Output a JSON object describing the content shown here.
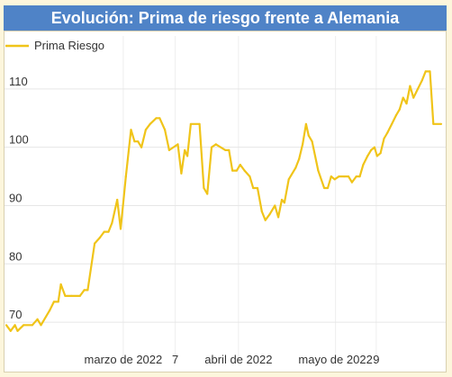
{
  "title": "Evolución: Prima de riesgo frente a Alemania",
  "chart_data": {
    "type": "line",
    "title": "Evolución: Prima de riesgo frente a Alemania",
    "xlabel": "",
    "ylabel": "",
    "ylim": [
      66,
      116
    ],
    "grid": true,
    "legend_position": "top-left",
    "x_ticks": [
      {
        "label": "marzo de 2022",
        "x": 13.5
      },
      {
        "label": "7",
        "x": 19.5
      },
      {
        "label": "abril de 2022",
        "x": 26.8
      },
      {
        "label": "mayo de 2022",
        "x": 38
      },
      {
        "label": "9",
        "x": 42.7
      }
    ],
    "y_ticks": [
      70,
      80,
      90,
      100,
      110
    ],
    "series": [
      {
        "name": "Prima Riesgo",
        "color": "#f0c419",
        "points": [
          [
            0,
            69.5
          ],
          [
            0.5,
            68.5
          ],
          [
            1,
            69.5
          ],
          [
            1.3,
            68.5
          ],
          [
            2,
            69.5
          ],
          [
            3,
            69.5
          ],
          [
            3.6,
            70.5
          ],
          [
            4,
            69.5
          ],
          [
            5,
            72
          ],
          [
            5.5,
            73.5
          ],
          [
            6,
            73.5
          ],
          [
            6.3,
            76.5
          ],
          [
            6.8,
            74.5
          ],
          [
            7.5,
            74.5
          ],
          [
            8.5,
            74.5
          ],
          [
            9,
            75.5
          ],
          [
            9.4,
            75.5
          ],
          [
            10.2,
            83.5
          ],
          [
            10.8,
            84.5
          ],
          [
            11.3,
            85.5
          ],
          [
            11.8,
            85.5
          ],
          [
            12.2,
            87
          ],
          [
            12.8,
            91
          ],
          [
            13.2,
            86
          ],
          [
            13.8,
            95
          ],
          [
            14.4,
            103
          ],
          [
            14.8,
            101
          ],
          [
            15.2,
            101
          ],
          [
            15.6,
            100
          ],
          [
            16.1,
            103
          ],
          [
            16.6,
            104
          ],
          [
            17.3,
            105
          ],
          [
            17.7,
            105
          ],
          [
            18.3,
            103
          ],
          [
            18.8,
            99.5
          ],
          [
            19.8,
            100.5
          ],
          [
            20.2,
            95.5
          ],
          [
            20.6,
            99.5
          ],
          [
            20.9,
            98.5
          ],
          [
            21.3,
            104
          ],
          [
            22.3,
            104
          ],
          [
            22.8,
            93
          ],
          [
            23.2,
            92
          ],
          [
            23.7,
            100
          ],
          [
            24.2,
            100.5
          ],
          [
            25.3,
            99.5
          ],
          [
            25.7,
            99.5
          ],
          [
            26.1,
            96
          ],
          [
            26.6,
            96
          ],
          [
            27,
            97
          ],
          [
            27.5,
            96
          ],
          [
            28.1,
            95
          ],
          [
            28.5,
            93
          ],
          [
            29,
            93
          ],
          [
            29.5,
            89
          ],
          [
            29.9,
            87.5
          ],
          [
            30.4,
            88.5
          ],
          [
            31,
            90
          ],
          [
            31.4,
            88
          ],
          [
            31.8,
            91
          ],
          [
            32.1,
            90.5
          ],
          [
            32.6,
            94.5
          ],
          [
            33.4,
            96.5
          ],
          [
            33.8,
            98
          ],
          [
            34.2,
            100.5
          ],
          [
            34.6,
            104
          ],
          [
            34.9,
            102
          ],
          [
            35.3,
            101
          ],
          [
            36,
            96
          ],
          [
            36.7,
            93
          ],
          [
            37.1,
            93
          ],
          [
            37.5,
            95
          ],
          [
            37.9,
            94.5
          ],
          [
            38.4,
            95
          ],
          [
            39,
            95
          ],
          [
            39.5,
            95
          ],
          [
            39.9,
            94
          ],
          [
            40.4,
            95
          ],
          [
            40.8,
            95
          ],
          [
            41.2,
            97
          ],
          [
            41.7,
            98.5
          ],
          [
            42.1,
            99.5
          ],
          [
            42.5,
            100
          ],
          [
            42.8,
            98.5
          ],
          [
            43.2,
            99
          ],
          [
            43.6,
            101.5
          ],
          [
            44,
            102.5
          ],
          [
            44.5,
            104
          ],
          [
            45,
            105.5
          ],
          [
            45.4,
            106.5
          ],
          [
            45.8,
            108.5
          ],
          [
            46.2,
            107.5
          ],
          [
            46.6,
            110.5
          ],
          [
            47,
            108.5
          ],
          [
            47.5,
            110
          ],
          [
            48,
            111.5
          ],
          [
            48.4,
            113
          ],
          [
            48.9,
            113
          ],
          [
            49.3,
            104
          ],
          [
            50.2,
            104
          ]
        ]
      }
    ]
  }
}
